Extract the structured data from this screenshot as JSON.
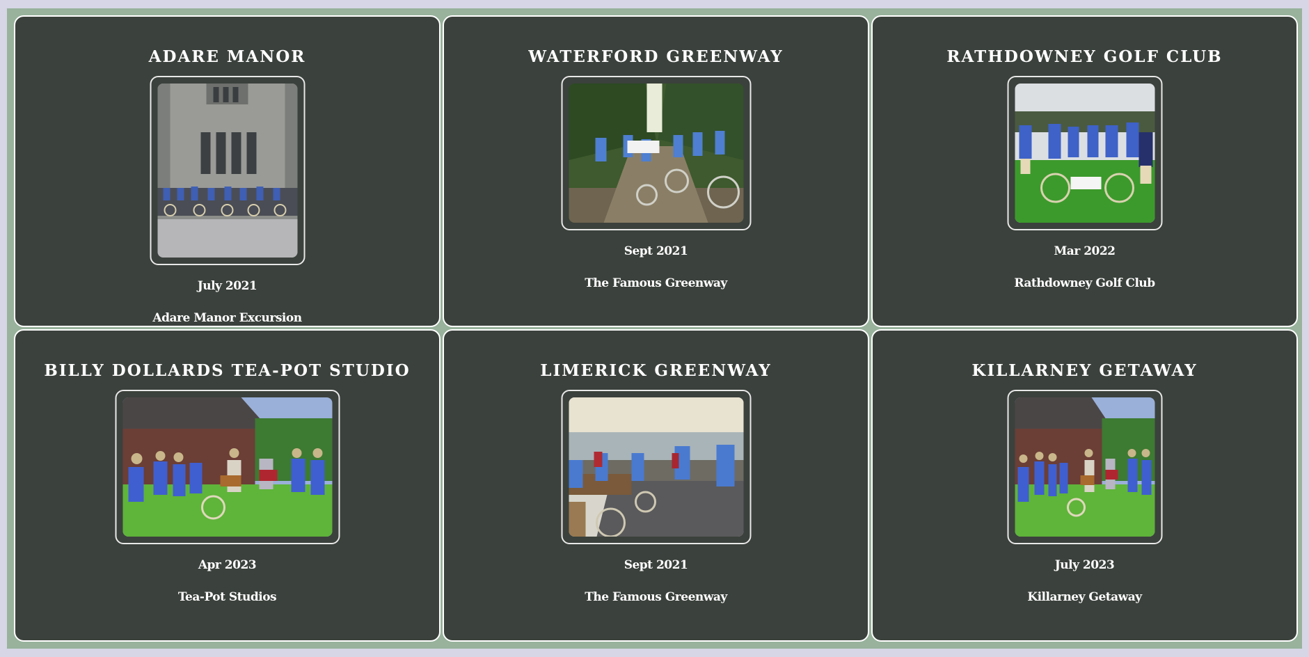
{
  "colors": {
    "page_bg": "#d6d6e6",
    "frame_bg": "#98b29b",
    "card_bg": "#3b413c",
    "card_border": "#ffffff",
    "text": "#ffffff"
  },
  "cards": [
    {
      "title": "ADARE MANOR",
      "date": "July 2021",
      "caption": "Adare Manor Excursion",
      "photo": "group-with-bicycles-outside-manor-house"
    },
    {
      "title": "WATERFORD GREENWAY",
      "date": "Sept 2021",
      "caption": "The Famous Greenway",
      "photo": "cyclists-on-wooded-greenway-with-cheque"
    },
    {
      "title": "RATHDOWNEY GOLF CLUB",
      "date": "Mar 2022",
      "caption": "Rathdowney Golf Club",
      "photo": "group-on-golf-green-with-bicycles"
    },
    {
      "title": "BILLY DOLLARDS TEA-POT STUDIO",
      "date": "Apr 2023",
      "caption": "Tea-Pot Studios",
      "photo": "group-with-musicians-outside-cabin"
    },
    {
      "title": "LIMERICK GREENWAY",
      "date": "Sept 2021",
      "caption": "The Famous Greenway",
      "photo": "cyclists-on-coastal-path"
    },
    {
      "title": "KILLARNEY GETAWAY",
      "date": "July 2023",
      "caption": "Killarney Getaway",
      "photo": "group-with-musicians-outside-cabin"
    }
  ]
}
